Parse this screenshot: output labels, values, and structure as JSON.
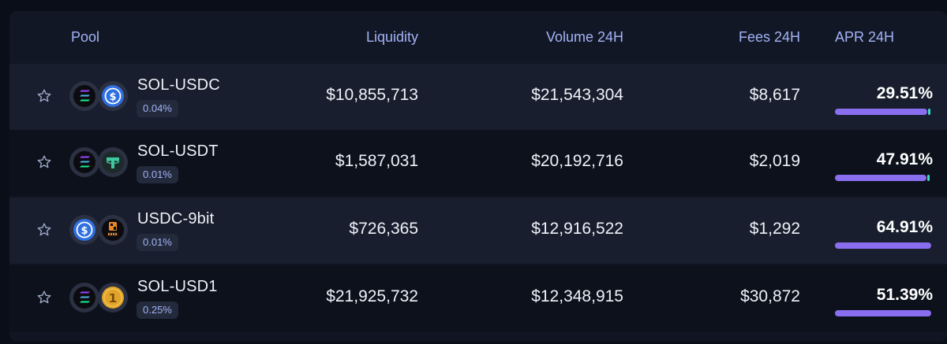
{
  "header": {
    "pool": "Pool",
    "liquidity": "Liquidity",
    "volume": "Volume 24H",
    "fees": "Fees 24H",
    "apr": "APR 24H"
  },
  "colors": {
    "accent_purple": "#8a6ef0",
    "accent_teal": "#3fd7c6",
    "header_text": "#a3b3f5",
    "usdc_blue": "#2f6fe0",
    "usdt_green": "#3fc7a0",
    "usd1_gold": "#e1a32a"
  },
  "rows": [
    {
      "pair": "SOL-USDC",
      "fee": "0.04%",
      "tokens": [
        "sol-icon",
        "usdc-icon"
      ],
      "liquidity": "$10,855,713",
      "volume": "$21,543,304",
      "fees": "$8,617",
      "apr": "29.51%",
      "apr_fill": 0.96,
      "apr_tick": 0.04
    },
    {
      "pair": "SOL-USDT",
      "fee": "0.01%",
      "tokens": [
        "sol-icon",
        "usdt-icon"
      ],
      "liquidity": "$1,587,031",
      "volume": "$20,192,716",
      "fees": "$2,019",
      "apr": "47.91%",
      "apr_fill": 0.95,
      "apr_tick": 0.05
    },
    {
      "pair": "USDC-9bit",
      "fee": "0.01%",
      "tokens": [
        "usdc-icon",
        "9bit-icon"
      ],
      "liquidity": "$726,365",
      "volume": "$12,916,522",
      "fees": "$1,292",
      "apr": "64.91%",
      "apr_fill": 1.0,
      "apr_tick": 0
    },
    {
      "pair": "SOL-USD1",
      "fee": "0.25%",
      "tokens": [
        "sol-icon",
        "usd1-icon"
      ],
      "liquidity": "$21,925,732",
      "volume": "$12,348,915",
      "fees": "$30,872",
      "apr": "51.39%",
      "apr_fill": 1.0,
      "apr_tick": 0
    }
  ]
}
